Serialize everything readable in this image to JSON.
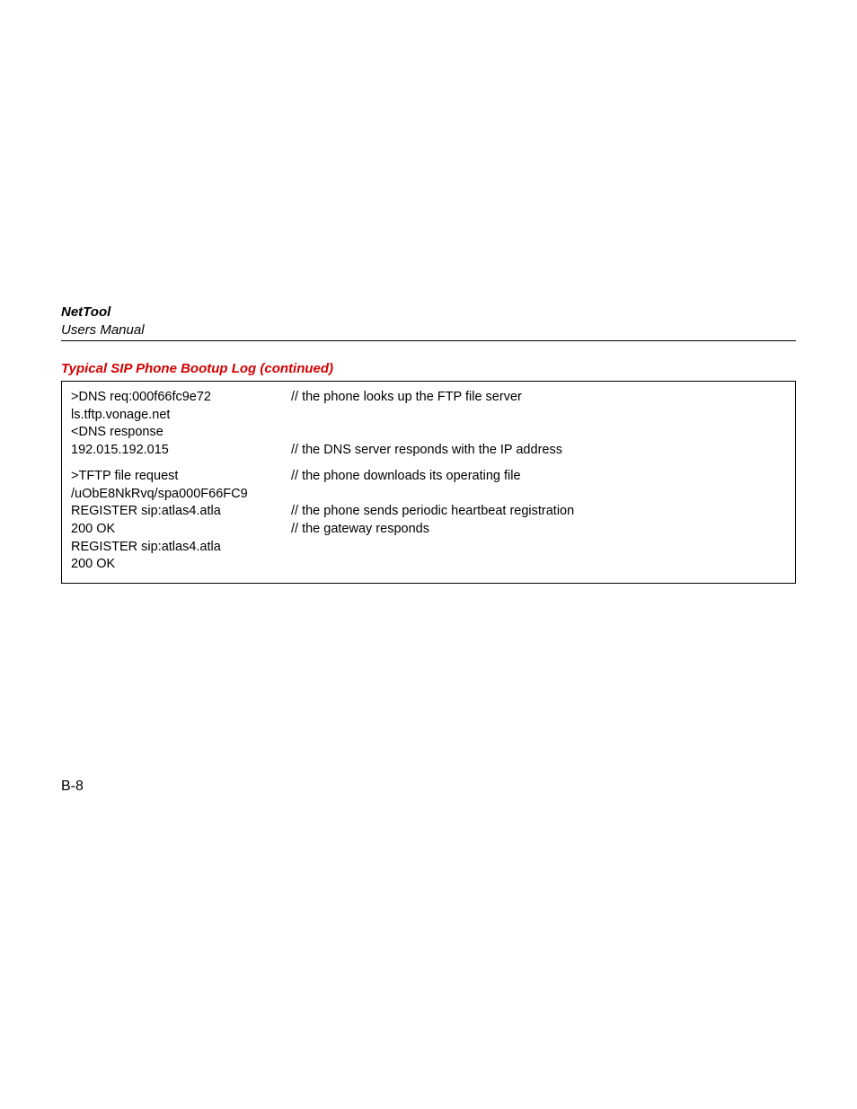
{
  "header": {
    "title": "NetTool",
    "subtitle": "Users Manual"
  },
  "section_title": "Typical SIP Phone Bootup Log (continued)",
  "colors": {
    "section_title": "#d40000",
    "text": "#000000",
    "border": "#000000",
    "background": "#ffffff"
  },
  "log_rows": [
    {
      "left": ">DNS req:000f66fc9e72",
      "right": "// the phone looks up the FTP file server"
    },
    {
      "left": "ls.tftp.vonage.net",
      "right": ""
    },
    {
      "left": "<DNS response",
      "right": ""
    },
    {
      "left": "192.015.192.015",
      "right": "// the DNS server responds with the IP address"
    },
    {
      "spacer": true
    },
    {
      "left": ">TFTP file request",
      "right": "// the phone downloads its operating file"
    },
    {
      "left": "/uObE8NkRvq/spa000F66FC9",
      "right": ""
    },
    {
      "left": "REGISTER sip:atlas4.atla",
      "right": "// the phone sends periodic heartbeat registration"
    },
    {
      "left": "200 OK",
      "right": "// the gateway responds"
    },
    {
      "left": "REGISTER sip:atlas4.atla",
      "right": ""
    },
    {
      "left": "200 OK",
      "right": ""
    }
  ],
  "page_number": "B-8"
}
